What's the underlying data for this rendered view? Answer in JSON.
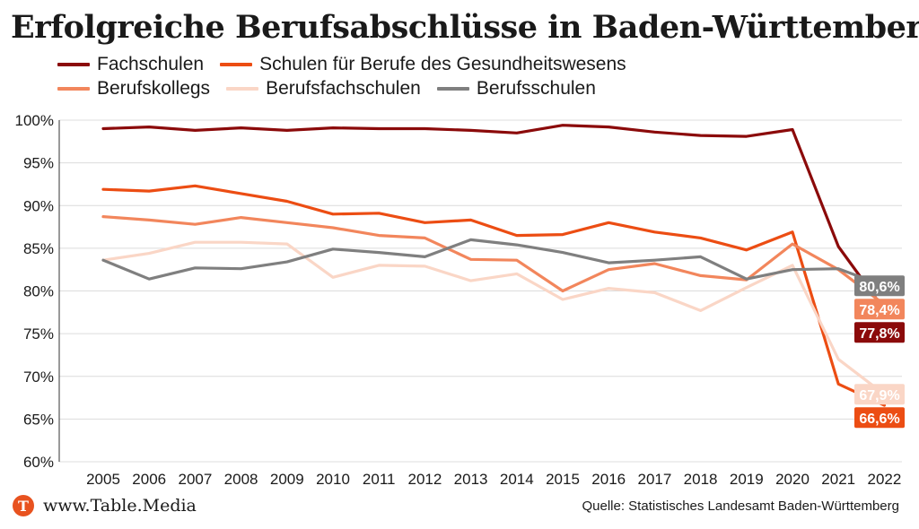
{
  "title": "Erfolgreiche Berufsabschlüsse in Baden-Württemberg",
  "footer": {
    "brand_initial": "T",
    "brand": "www.Table.Media",
    "source": "Quelle: Statistisches Landesamt Baden-Württemberg"
  },
  "chart_data": {
    "type": "line",
    "title": "Erfolgreiche Berufsabschlüsse in Baden-Württemberg",
    "xlabel": "",
    "ylabel": "",
    "ylim": [
      60,
      100
    ],
    "yticks": [
      "100%",
      "95%",
      "90%",
      "85%",
      "80%",
      "75%",
      "70%",
      "65%",
      "60%"
    ],
    "categories": [
      "2005",
      "2006",
      "2007",
      "2008",
      "2009",
      "2010",
      "2011",
      "2012",
      "2013",
      "2014",
      "2015",
      "2016",
      "2017",
      "2018",
      "2019",
      "2020",
      "2021",
      "2022"
    ],
    "series": [
      {
        "name": "Fachschulen",
        "color": "#8b0a0a",
        "values": [
          99.0,
          99.2,
          98.8,
          99.1,
          98.8,
          99.1,
          99.0,
          99.0,
          98.8,
          98.5,
          99.4,
          99.2,
          98.6,
          98.2,
          98.1,
          98.9,
          85.2,
          77.8
        ],
        "end_label": "77,8%"
      },
      {
        "name": "Schulen für Berufe des Gesundheitswesens",
        "color": "#ec4d13",
        "values": [
          91.9,
          91.7,
          92.3,
          91.4,
          90.5,
          89.0,
          89.1,
          88.0,
          88.3,
          86.5,
          86.6,
          88.0,
          86.9,
          86.2,
          84.8,
          86.9,
          69.1,
          66.6
        ],
        "end_label": "66,6%"
      },
      {
        "name": "Berufskollegs",
        "color": "#f2865c",
        "values": [
          88.7,
          88.3,
          87.8,
          88.6,
          88.0,
          87.4,
          86.5,
          86.2,
          83.7,
          83.6,
          80.0,
          82.5,
          83.2,
          81.8,
          81.3,
          85.5,
          82.5,
          78.4
        ],
        "end_label": "78,4%"
      },
      {
        "name": "Berufsfachschulen",
        "color": "#fad6c6",
        "values": [
          83.6,
          84.4,
          85.7,
          85.7,
          85.5,
          81.6,
          83.0,
          82.9,
          81.2,
          82.0,
          79.0,
          80.3,
          79.8,
          77.7,
          80.4,
          83.0,
          72.0,
          67.9
        ],
        "end_label": "67,9%"
      },
      {
        "name": "Berufsschulen",
        "color": "#7f7f7f",
        "values": [
          83.6,
          81.4,
          82.7,
          82.6,
          83.4,
          84.9,
          84.5,
          84.0,
          86.0,
          85.4,
          84.5,
          83.3,
          83.6,
          84.0,
          81.4,
          82.5,
          82.6,
          80.6
        ],
        "end_label": "80,6%"
      }
    ]
  }
}
